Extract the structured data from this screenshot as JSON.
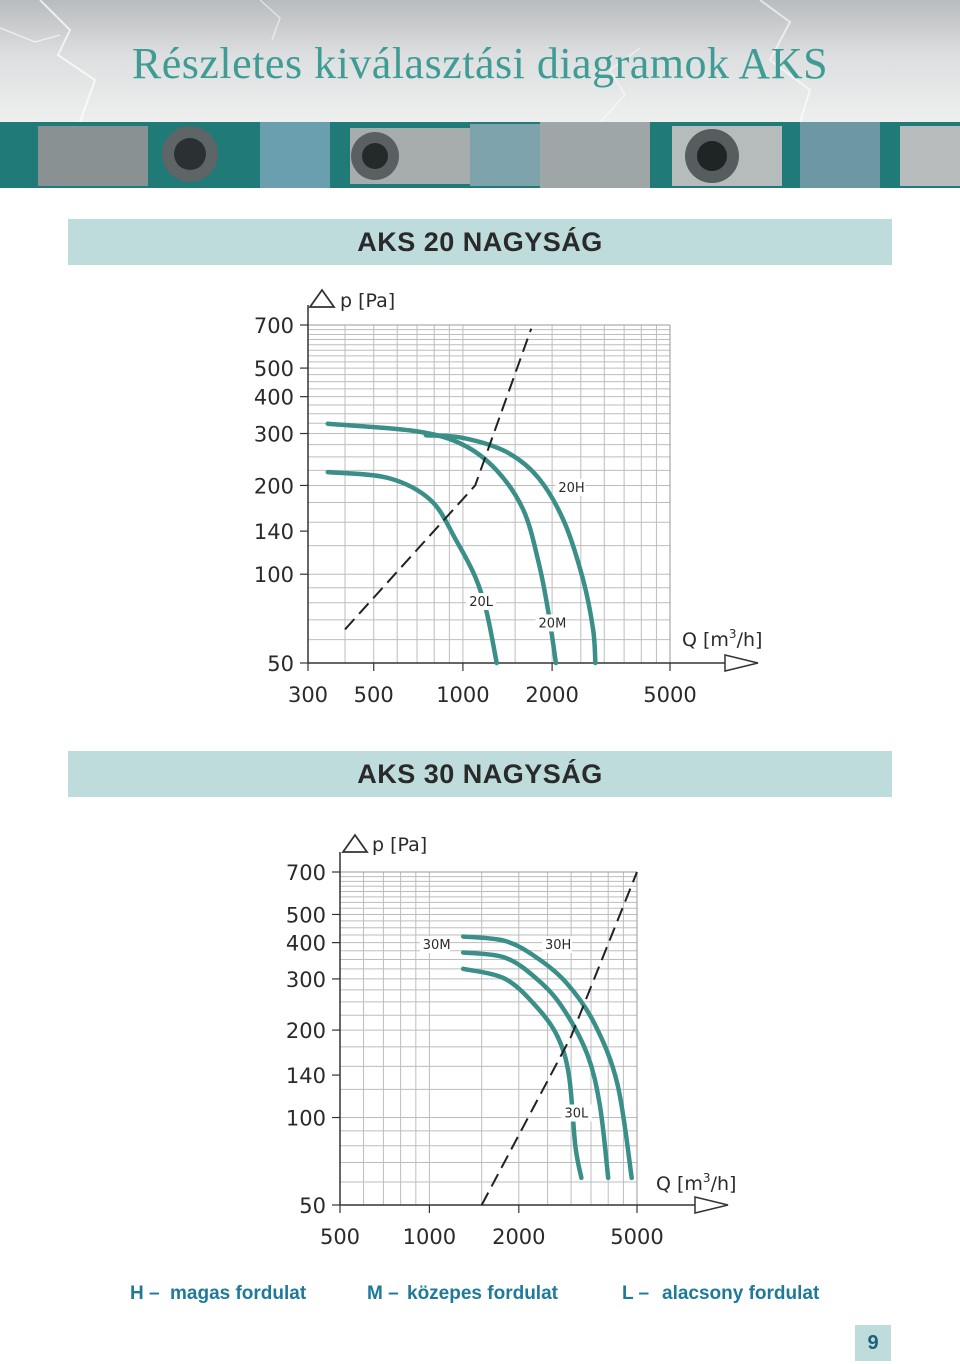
{
  "page": {
    "title": "Részletes kiválasztási diagramok AKS",
    "page_number": "9",
    "colors": {
      "title": "#3f9c95",
      "banner": "#1f7a78",
      "section_bar": "#bfdcdc",
      "curve": "#3a8f88",
      "legend": "#1f7a9a"
    }
  },
  "legend": [
    {
      "code": "H –",
      "text": "magas fordulat"
    },
    {
      "code": "M –",
      "text": "közepes fordulat"
    },
    {
      "code": "L –",
      "text": "alacsony fordulat"
    }
  ],
  "chart_data": [
    {
      "type": "line",
      "title": "AKS 20 NAGYSÁG",
      "ylabel": "p [Pa]",
      "xlabel_main": "Q [m",
      "xlabel_sup": "3",
      "xlabel_tail": "/h]",
      "xscale": "log",
      "yscale": "log",
      "xlim": [
        300,
        5000
      ],
      "ylim": [
        50,
        700
      ],
      "x_ticks": [
        300,
        500,
        1000,
        2000,
        5000
      ],
      "y_ticks": [
        50,
        100,
        140,
        200,
        300,
        400,
        500,
        700
      ],
      "grid": true,
      "series": [
        {
          "name": "20L",
          "label_at": [
            1050,
            78
          ],
          "points": [
            [
              350,
              222
            ],
            [
              560,
              212
            ],
            [
              780,
              178
            ],
            [
              950,
              130
            ],
            [
              1100,
              98
            ],
            [
              1200,
              75
            ],
            [
              1300,
              50
            ]
          ]
        },
        {
          "name": "20M",
          "label_at": [
            1800,
            66
          ],
          "points": [
            [
              350,
              324
            ],
            [
              700,
              305
            ],
            [
              1000,
              275
            ],
            [
              1300,
              225
            ],
            [
              1600,
              165
            ],
            [
              1800,
              110
            ],
            [
              1940,
              75
            ],
            [
              2060,
              50
            ]
          ]
        },
        {
          "name": "20H",
          "label_at": [
            2100,
            190
          ],
          "points": [
            [
              750,
              296
            ],
            [
              1000,
              290
            ],
            [
              1400,
              260
            ],
            [
              1800,
              212
            ],
            [
              2200,
              150
            ],
            [
              2550,
              95
            ],
            [
              2750,
              65
            ],
            [
              2800,
              50
            ]
          ]
        },
        {
          "name": "limit",
          "style": "dashed",
          "points": [
            [
              400,
              65
            ],
            [
              1100,
              200
            ],
            [
              1700,
              680
            ]
          ]
        }
      ]
    },
    {
      "type": "line",
      "title": "AKS 30 NAGYSÁG",
      "ylabel": "p [Pa]",
      "xlabel_main": "Q [m",
      "xlabel_sup": "3",
      "xlabel_tail": "/h]",
      "xscale": "log",
      "yscale": "log",
      "xlim": [
        500,
        5000
      ],
      "ylim": [
        50,
        700
      ],
      "x_ticks": [
        500,
        1000,
        2000,
        5000
      ],
      "y_ticks": [
        50,
        100,
        140,
        200,
        300,
        400,
        500,
        700
      ],
      "grid": true,
      "series": [
        {
          "name": "30L",
          "label_at": [
            2850,
            100
          ],
          "points": [
            [
              1300,
              325
            ],
            [
              1800,
              300
            ],
            [
              2300,
              240
            ],
            [
              2700,
              190
            ],
            [
              2950,
              140
            ],
            [
              3100,
              80
            ],
            [
              3250,
              62
            ]
          ]
        },
        {
          "name": "30M",
          "label_at": [
            950,
            380
          ],
          "points": [
            [
              1300,
              370
            ],
            [
              1800,
              355
            ],
            [
              2300,
              300
            ],
            [
              2800,
              240
            ],
            [
              3400,
              165
            ],
            [
              3750,
              110
            ],
            [
              4000,
              62
            ]
          ]
        },
        {
          "name": "30H",
          "label_at": [
            2450,
            380
          ],
          "points": [
            [
              1300,
              420
            ],
            [
              1800,
              405
            ],
            [
              2300,
              355
            ],
            [
              2900,
              290
            ],
            [
              3600,
              210
            ],
            [
              4300,
              130
            ],
            [
              4800,
              62
            ]
          ]
        },
        {
          "name": "limit",
          "style": "dashed",
          "points": [
            [
              1500,
              50
            ],
            [
              3000,
              190
            ],
            [
              5000,
              700
            ]
          ]
        }
      ]
    }
  ]
}
